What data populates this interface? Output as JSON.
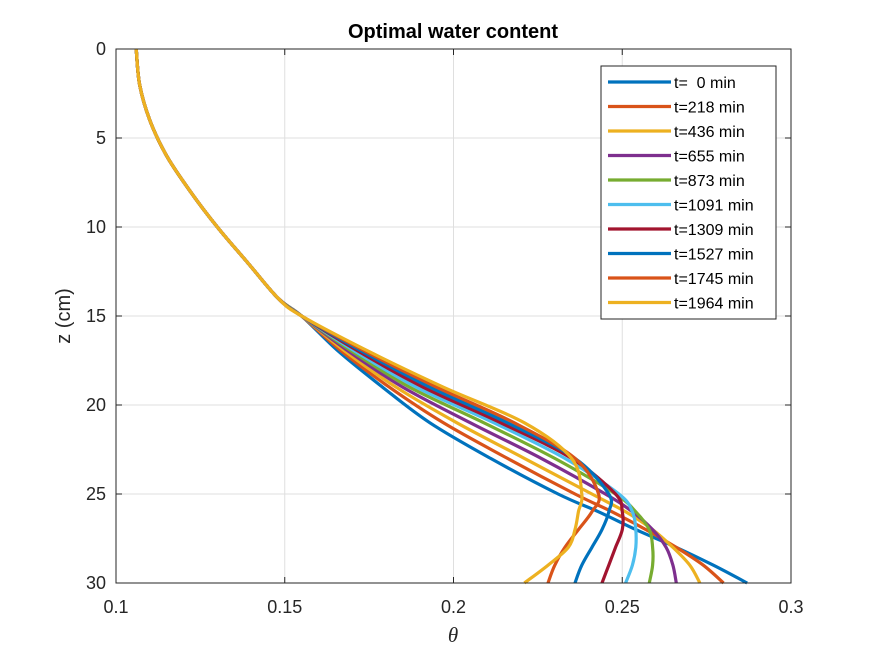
{
  "chart_data": {
    "type": "line",
    "title": "Optimal water content",
    "xlabel": "θ",
    "ylabel": "z (cm)",
    "xlim": [
      0.1,
      0.3
    ],
    "ylim": [
      0,
      30
    ],
    "y_reversed": true,
    "grid": true,
    "legend_position": "top-right",
    "xticks": [
      0.1,
      0.15,
      0.2,
      0.25,
      0.3
    ],
    "xtick_labels": [
      "0.1",
      "0.15",
      "0.2",
      "0.25",
      "0.3"
    ],
    "yticks": [
      0,
      5,
      10,
      15,
      20,
      25,
      30
    ],
    "ytick_labels": [
      "0",
      "5",
      "10",
      "15",
      "20",
      "25",
      "30"
    ],
    "shared_profile_upper": {
      "z": [
        0,
        2,
        4,
        6,
        8,
        10,
        12,
        14
      ],
      "theta": [
        0.106,
        0.107,
        0.11,
        0.115,
        0.122,
        0.13,
        0.139,
        0.148
      ]
    },
    "series": [
      {
        "name": "t=  0 min",
        "color": "#0072BD",
        "z": [
          15,
          17,
          19,
          21,
          23,
          25,
          26,
          27,
          28,
          29,
          30
        ],
        "theta": [
          0.155,
          0.166,
          0.179,
          0.193,
          0.211,
          0.231,
          0.243,
          0.254,
          0.266,
          0.277,
          0.287
        ]
      },
      {
        "name": "t=218 min",
        "color": "#D95319",
        "z": [
          15,
          17,
          19,
          21,
          23,
          25,
          26,
          27,
          28,
          29,
          30
        ],
        "theta": [
          0.155,
          0.167,
          0.181,
          0.197,
          0.216,
          0.236,
          0.247,
          0.257,
          0.266,
          0.274,
          0.28
        ]
      },
      {
        "name": "t=436 min",
        "color": "#EDB120",
        "z": [
          15,
          17,
          19,
          21,
          23,
          25,
          26,
          27,
          28,
          29,
          30
        ],
        "theta": [
          0.155,
          0.168,
          0.183,
          0.201,
          0.221,
          0.241,
          0.251,
          0.259,
          0.265,
          0.27,
          0.273
        ]
      },
      {
        "name": "t=655 min",
        "color": "#7E2F8E",
        "z": [
          15,
          17,
          19,
          21,
          23,
          25,
          26,
          27,
          28,
          29,
          30
        ],
        "theta": [
          0.155,
          0.169,
          0.185,
          0.205,
          0.226,
          0.245,
          0.253,
          0.259,
          0.263,
          0.265,
          0.266
        ]
      },
      {
        "name": "t=873 min",
        "color": "#77AC30",
        "z": [
          15,
          17,
          19,
          21,
          23,
          25,
          26,
          27,
          28,
          29,
          30
        ],
        "theta": [
          0.155,
          0.17,
          0.187,
          0.209,
          0.23,
          0.248,
          0.254,
          0.258,
          0.259,
          0.259,
          0.258
        ]
      },
      {
        "name": "t=1091 min",
        "color": "#4DBEEE",
        "z": [
          15,
          17,
          19,
          21,
          23,
          25,
          26,
          27,
          28,
          29,
          30
        ],
        "theta": [
          0.155,
          0.171,
          0.189,
          0.212,
          0.233,
          0.249,
          0.253,
          0.254,
          0.254,
          0.253,
          0.251
        ]
      },
      {
        "name": "t=1309 min",
        "color": "#A2142F",
        "z": [
          15,
          17,
          19,
          21,
          23,
          25,
          26,
          27,
          28,
          29,
          30
        ],
        "theta": [
          0.155,
          0.172,
          0.191,
          0.214,
          0.235,
          0.248,
          0.25,
          0.25,
          0.248,
          0.246,
          0.244
        ]
      },
      {
        "name": "t=1527 min",
        "color": "#0072BD",
        "z": [
          15,
          17,
          19,
          21,
          23,
          25,
          26,
          27,
          28,
          29,
          30
        ],
        "theta": [
          0.155,
          0.173,
          0.193,
          0.216,
          0.236,
          0.246,
          0.246,
          0.244,
          0.241,
          0.238,
          0.236
        ]
      },
      {
        "name": "t=1745 min",
        "color": "#D95319",
        "z": [
          15,
          17,
          19,
          21,
          23,
          25,
          26,
          27,
          28,
          29,
          30
        ],
        "theta": [
          0.155,
          0.174,
          0.195,
          0.218,
          0.236,
          0.243,
          0.241,
          0.237,
          0.233,
          0.23,
          0.228
        ]
      },
      {
        "name": "t=1964 min",
        "color": "#EDB120",
        "z": [
          15,
          17,
          19,
          21,
          23,
          25,
          26,
          27,
          28,
          29,
          30
        ],
        "theta": [
          0.155,
          0.175,
          0.197,
          0.221,
          0.235,
          0.238,
          0.237,
          0.236,
          0.234,
          0.228,
          0.221
        ]
      }
    ]
  }
}
